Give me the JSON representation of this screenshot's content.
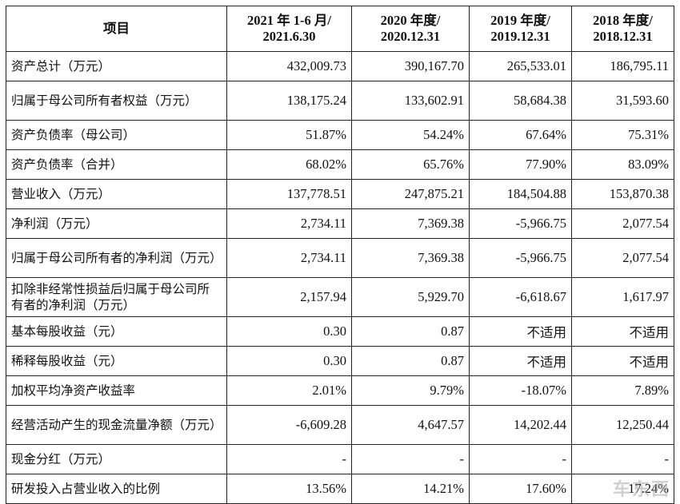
{
  "table": {
    "headers": [
      "项目",
      "2021 年 1-6 月/ 2021.6.30",
      "2020 年度/ 2020.12.31",
      "2019 年度/ 2019.12.31",
      "2018 年度/ 2018.12.31"
    ],
    "rows": [
      {
        "label": "资产总计（万元）",
        "values": [
          "432,009.73",
          "390,167.70",
          "265,533.01",
          "186,795.11"
        ]
      },
      {
        "label": "归属于母公司所有者权益（万元）",
        "values": [
          "138,175.24",
          "133,602.91",
          "58,684.38",
          "31,593.60"
        ]
      },
      {
        "label": "资产负债率（母公司）",
        "values": [
          "51.87%",
          "54.24%",
          "67.64%",
          "75.31%"
        ]
      },
      {
        "label": "资产负债率（合并）",
        "values": [
          "68.02%",
          "65.76%",
          "77.90%",
          "83.09%"
        ]
      },
      {
        "label": "营业收入（万元）",
        "values": [
          "137,778.51",
          "247,875.21",
          "184,504.88",
          "153,870.38"
        ]
      },
      {
        "label": "净利润（万元）",
        "values": [
          "2,734.11",
          "7,369.38",
          "-5,966.75",
          "2,077.54"
        ]
      },
      {
        "label": "归属于母公司所有者的净利润（万元）",
        "values": [
          "2,734.11",
          "7,369.38",
          "-5,966.75",
          "2,077.54"
        ]
      },
      {
        "label": "扣除非经常性损益后归属于母公司所有者的净利润（万元）",
        "values": [
          "2,157.94",
          "5,929.70",
          "-6,618.67",
          "1,617.97"
        ]
      },
      {
        "label": "基本每股收益（元）",
        "values": [
          "0.30",
          "0.87",
          "不适用",
          "不适用"
        ]
      },
      {
        "label": "稀释每股收益（元）",
        "values": [
          "0.30",
          "0.87",
          "不适用",
          "不适用"
        ]
      },
      {
        "label": "加权平均净资产收益率",
        "values": [
          "2.01%",
          "9.79%",
          "-18.07%",
          "7.89%"
        ]
      },
      {
        "label": "经营活动产生的现金流量净额（万元）",
        "values": [
          "-6,609.28",
          "4,647.57",
          "14,202.44",
          "12,250.44"
        ]
      },
      {
        "label": "现金分红（万元）",
        "values": [
          "-",
          "-",
          "-",
          "-"
        ]
      },
      {
        "label": "研发投入占营业收入的比例",
        "values": [
          "13.56%",
          "14.21%",
          "17.60%",
          "17.24%"
        ]
      }
    ]
  },
  "watermark": "车东西"
}
